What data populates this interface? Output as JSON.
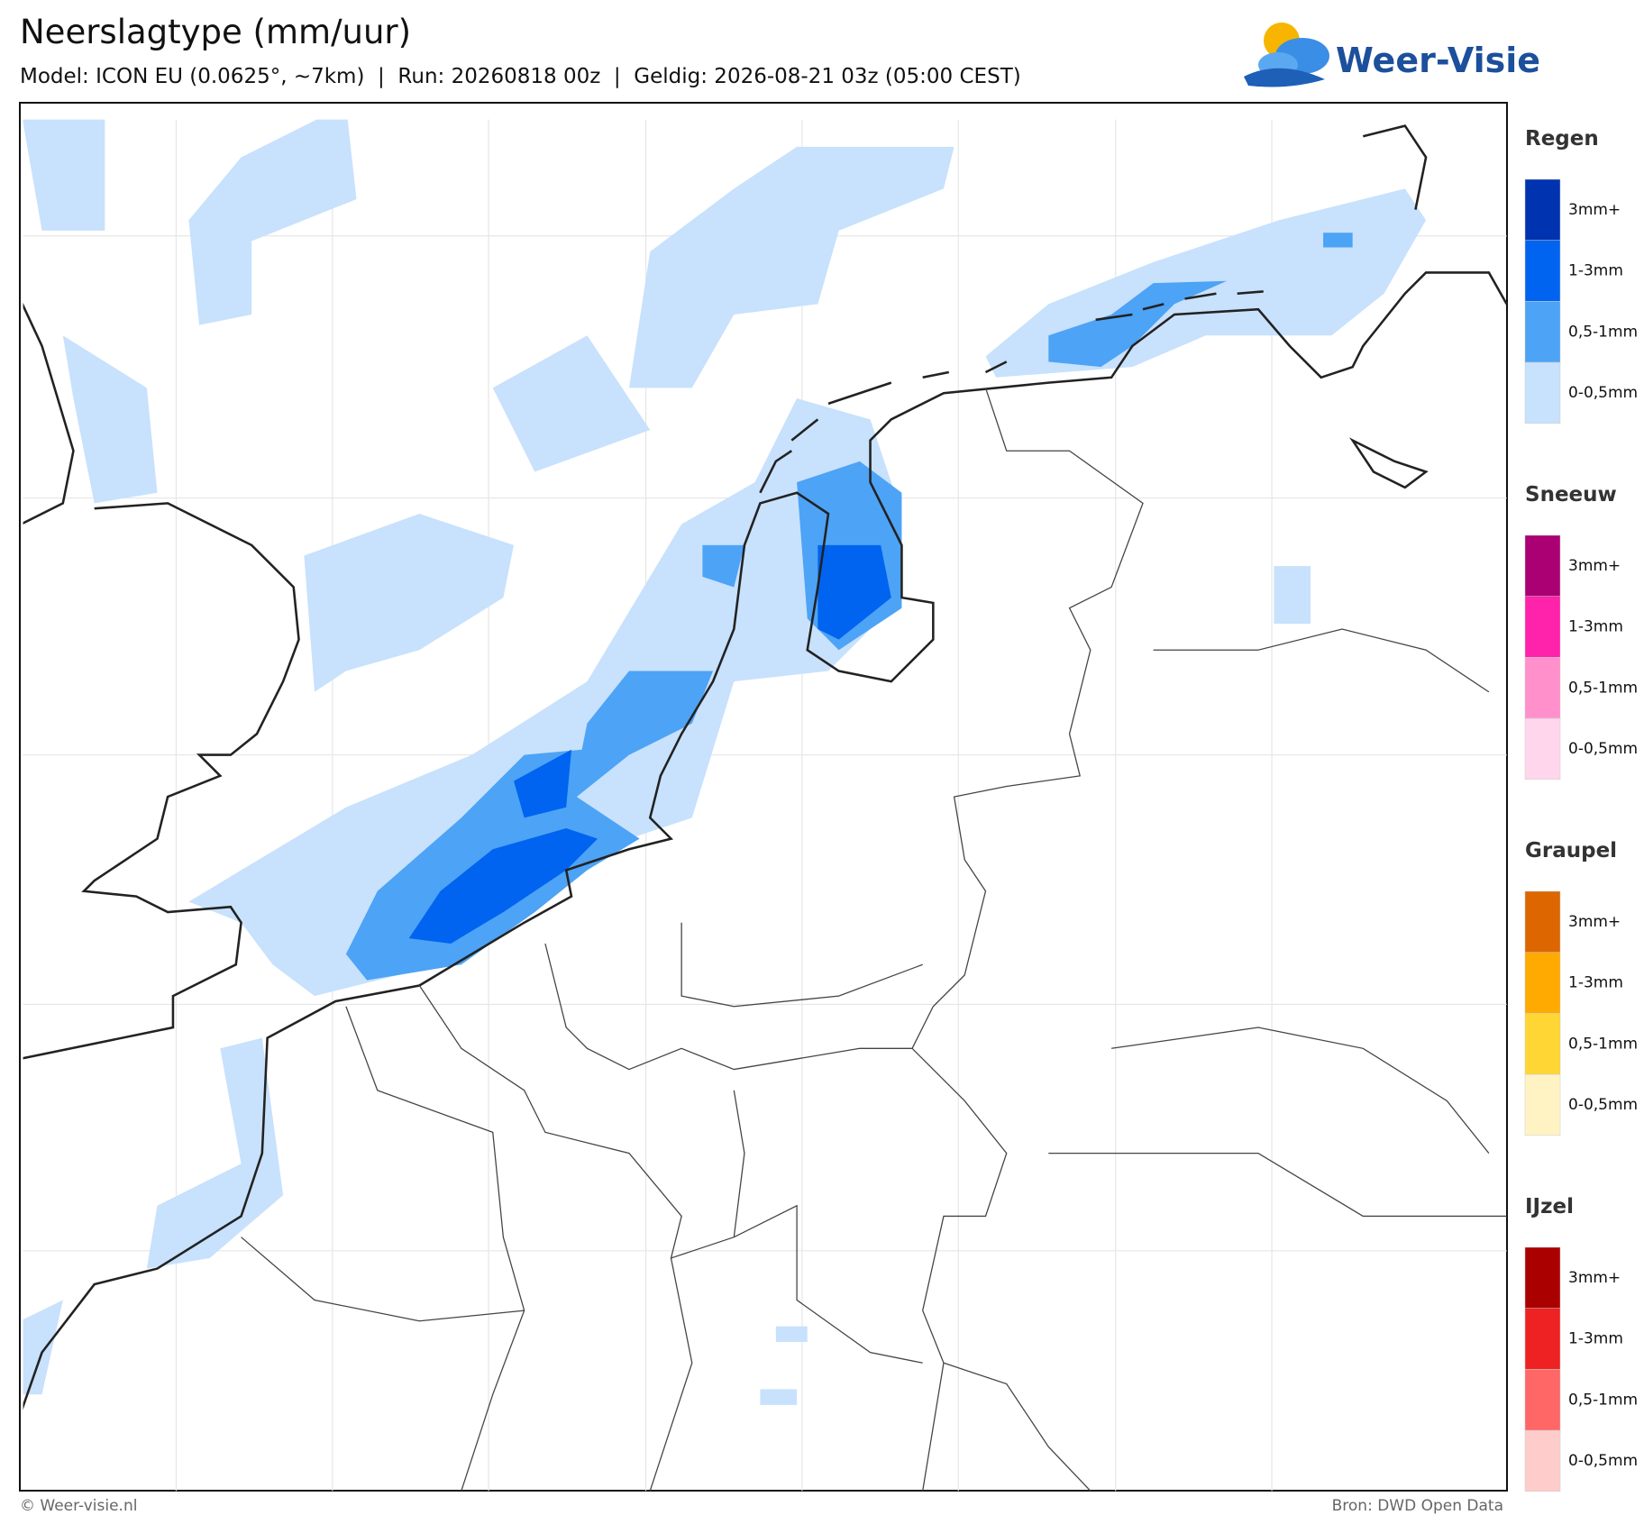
{
  "header": {
    "title": "Neerslagtype (mm/uur)",
    "subtitle": "Model: ICON EU (0.0625°, ~7km)  |  Run: 20260818 00z  |  Geldig: 2026-08-21 03z (05:00 CEST)",
    "logo": "Weer-Visie"
  },
  "legend": [
    {
      "title": "Regen",
      "items": [
        {
          "label": "3mm+",
          "color": "#0033b0"
        },
        {
          "label": "1-3mm",
          "color": "#0064f0"
        },
        {
          "label": "0,5-1mm",
          "color": "#4da3f5"
        },
        {
          "label": "0-0,5mm",
          "color": "#c8e1fc"
        }
      ]
    },
    {
      "title": "Sneeuw",
      "items": [
        {
          "label": "3mm+",
          "color": "#aa0073"
        },
        {
          "label": "1-3mm",
          "color": "#ff22aa"
        },
        {
          "label": "0,5-1mm",
          "color": "#ff90cc"
        },
        {
          "label": "0-0,5mm",
          "color": "#ffd6ec"
        }
      ]
    },
    {
      "title": "Graupel",
      "items": [
        {
          "label": "3mm+",
          "color": "#dd6600"
        },
        {
          "label": "1-3mm",
          "color": "#ffaa00"
        },
        {
          "label": "0,5-1mm",
          "color": "#ffd633"
        },
        {
          "label": "0-0,5mm",
          "color": "#fff3c4"
        }
      ]
    },
    {
      "title": "IJzel",
      "items": [
        {
          "label": "3mm+",
          "color": "#aa0000"
        },
        {
          "label": "1-3mm",
          "color": "#ee2222"
        },
        {
          "label": "0,5-1mm",
          "color": "#ff6666"
        },
        {
          "label": "0-0,5mm",
          "color": "#ffcccc"
        }
      ]
    }
  ],
  "footer": {
    "left": "© Weer-visie.nl",
    "right": "Bron: DWD Open Data"
  }
}
